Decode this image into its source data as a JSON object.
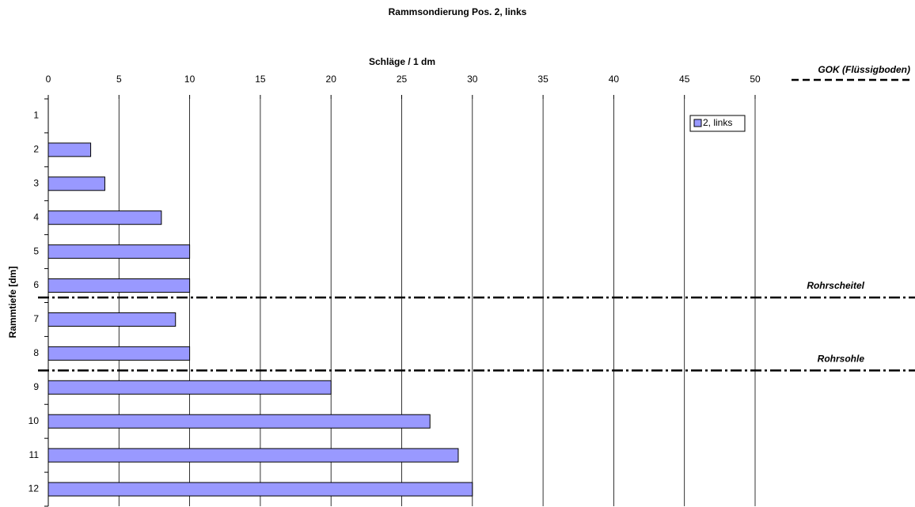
{
  "chart_data": {
    "type": "hbar",
    "title": "Rammsondierung Pos. 2, links",
    "xlabel": "Schläge / 1 dm",
    "ylabel": "Rammtiefe [dm]",
    "categories": [
      "1",
      "2",
      "3",
      "4",
      "5",
      "6",
      "7",
      "8",
      "9",
      "10",
      "11",
      "12"
    ],
    "series": [
      {
        "name": "2, links",
        "color": "#9999ff",
        "values": [
          0,
          3,
          4,
          8,
          10,
          10,
          9,
          10,
          20,
          27,
          29,
          30
        ]
      }
    ],
    "xlim": [
      0,
      50
    ],
    "xticks": [
      0,
      5,
      10,
      15,
      20,
      25,
      30,
      35,
      40,
      45,
      50
    ],
    "grid": true,
    "legend": "upper right",
    "top_note": "GOK (Flüssigboden)",
    "annotations": [
      {
        "text": "Rohrscheitel",
        "at": 5.85
      },
      {
        "text": "Rohrsohle",
        "at": 8.0
      }
    ]
  }
}
